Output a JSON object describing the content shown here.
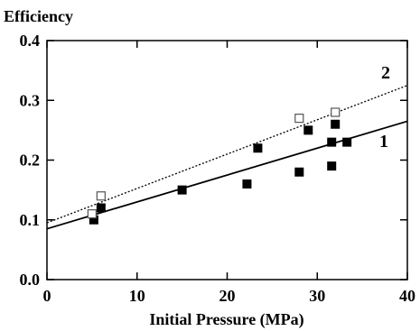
{
  "chart_data": {
    "type": "scatter",
    "title": "",
    "xlabel": "Initial Pressure (MPa)",
    "ylabel": "Efficiency",
    "xlim": [
      0,
      40
    ],
    "ylim": [
      0.0,
      0.4
    ],
    "x_ticks": [
      "0",
      "10",
      "20",
      "30",
      "40"
    ],
    "y_ticks": [
      "0.0",
      "0.1",
      "0.2",
      "0.3",
      "0.4"
    ],
    "grid": false,
    "series": [
      {
        "name": "1",
        "marker": "filled-square",
        "color": "#000000",
        "points": [
          {
            "x": 5.2,
            "y": 0.1
          },
          {
            "x": 6.0,
            "y": 0.12
          },
          {
            "x": 15.0,
            "y": 0.15
          },
          {
            "x": 22.2,
            "y": 0.16
          },
          {
            "x": 23.4,
            "y": 0.22
          },
          {
            "x": 28.0,
            "y": 0.18
          },
          {
            "x": 29.0,
            "y": 0.25
          },
          {
            "x": 31.6,
            "y": 0.19
          },
          {
            "x": 31.6,
            "y": 0.23
          },
          {
            "x": 32.0,
            "y": 0.26
          },
          {
            "x": 33.3,
            "y": 0.23
          }
        ],
        "fit": {
          "style": "solid",
          "x": [
            0,
            40
          ],
          "y": [
            0.085,
            0.265
          ]
        }
      },
      {
        "name": "2",
        "marker": "open-square",
        "color": "#000000",
        "points": [
          {
            "x": 5.0,
            "y": 0.11
          },
          {
            "x": 6.0,
            "y": 0.14
          },
          {
            "x": 28.0,
            "y": 0.27
          },
          {
            "x": 32.0,
            "y": 0.28
          }
        ],
        "fit": {
          "style": "dotted",
          "x": [
            0,
            40
          ],
          "y": [
            0.095,
            0.325
          ]
        }
      }
    ]
  }
}
